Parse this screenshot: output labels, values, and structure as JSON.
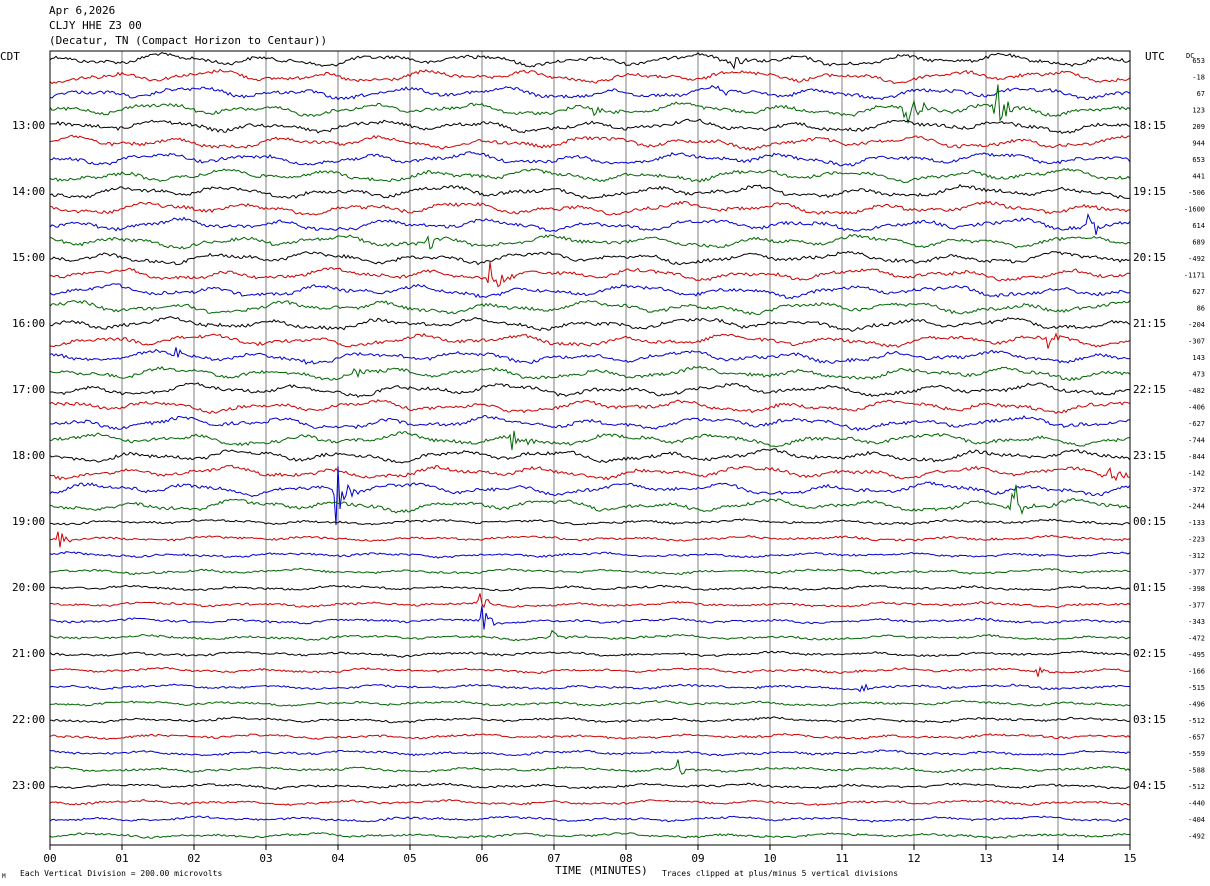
{
  "header": {
    "date": "Apr 6,2026",
    "channel": "CLJY HHE Z3 00",
    "location": "(Decatur, TN (Compact Horizon to Centaur))"
  },
  "left_tz": "CDT",
  "right_tz": "UTC",
  "dc_label": "DC",
  "footer": {
    "xlabel": "TIME (MINUTES)",
    "scale_note": "Each Vertical Division =  200.00 microvolts",
    "clip_note": "Traces clipped at plus/minus 5 vertical divisions",
    "corner_mark": "M"
  },
  "colors": {
    "trace_cycle": [
      "#000000",
      "#cc0000",
      "#0000cc",
      "#006600"
    ],
    "grid": "#808080",
    "background": "#ffffff"
  },
  "chart_data": {
    "type": "line",
    "title": "CLJY HHE Z3 00",
    "xlabel": "TIME (MINUTES)",
    "xlim": [
      0,
      15
    ],
    "x_ticks": [
      "00",
      "01",
      "02",
      "03",
      "04",
      "05",
      "06",
      "07",
      "08",
      "09",
      "10",
      "11",
      "12",
      "13",
      "14",
      "15"
    ],
    "left_hour_labels": [
      "13:00",
      "14:00",
      "15:00",
      "16:00",
      "17:00",
      "18:00",
      "19:00",
      "20:00",
      "21:00",
      "22:00",
      "23:00"
    ],
    "right_hour_labels": [
      "18:15",
      "19:15",
      "20:15",
      "21:15",
      "22:15",
      "23:15",
      "00:15",
      "01:15",
      "02:15",
      "03:15",
      "04:15"
    ],
    "traces_per_hour": 4,
    "trace_count": 48,
    "dc_offsets": [
      653,
      -18,
      67,
      123,
      209,
      944,
      653,
      441,
      -506,
      -1600,
      614,
      689,
      -492,
      -1171,
      627,
      86,
      -204,
      -307,
      143,
      473,
      -482,
      -406,
      -627,
      -744,
      -844,
      -142,
      -372,
      -244,
      -133,
      -223,
      -312,
      -377,
      -398,
      -377,
      -343,
      -472,
      -495,
      -166,
      -515,
      -496,
      -512,
      -657,
      -559,
      -588,
      -512,
      -440,
      -404,
      -492
    ],
    "events": [
      {
        "trace": 0,
        "minute": 9.5,
        "amp": 0.6
      },
      {
        "trace": 3,
        "minute": 11.9,
        "amp": 2.2
      },
      {
        "trace": 3,
        "minute": 13.15,
        "amp": 2.0
      },
      {
        "trace": 2,
        "minute": 9.3,
        "amp": 0.8
      },
      {
        "trace": 3,
        "minute": 7.55,
        "amp": 0.6
      },
      {
        "trace": 10,
        "minute": 14.4,
        "amp": 1.5
      },
      {
        "trace": 11,
        "minute": 5.25,
        "amp": 1.0
      },
      {
        "trace": 13,
        "minute": 6.1,
        "amp": 2.3
      },
      {
        "trace": 17,
        "minute": 13.85,
        "amp": 0.9
      },
      {
        "trace": 18,
        "minute": 1.75,
        "amp": 0.7
      },
      {
        "trace": 18,
        "minute": 3.5,
        "amp": 0.6
      },
      {
        "trace": 19,
        "minute": 4.2,
        "amp": 0.7
      },
      {
        "trace": 23,
        "minute": 6.4,
        "amp": 1.3
      },
      {
        "trace": 25,
        "minute": 14.7,
        "amp": 1.5
      },
      {
        "trace": 26,
        "minute": 3.97,
        "amp": 2.5
      },
      {
        "trace": 27,
        "minute": 13.35,
        "amp": 2.8
      },
      {
        "trace": 29,
        "minute": 0.1,
        "amp": 0.7
      },
      {
        "trace": 33,
        "minute": 5.95,
        "amp": 0.9
      },
      {
        "trace": 34,
        "minute": 6.0,
        "amp": 1.0
      },
      {
        "trace": 35,
        "minute": 6.95,
        "amp": 0.6
      },
      {
        "trace": 37,
        "minute": 13.7,
        "amp": 0.7
      },
      {
        "trace": 38,
        "minute": 11.25,
        "amp": 0.6
      },
      {
        "trace": 43,
        "minute": 8.7,
        "amp": 1.0
      }
    ]
  }
}
